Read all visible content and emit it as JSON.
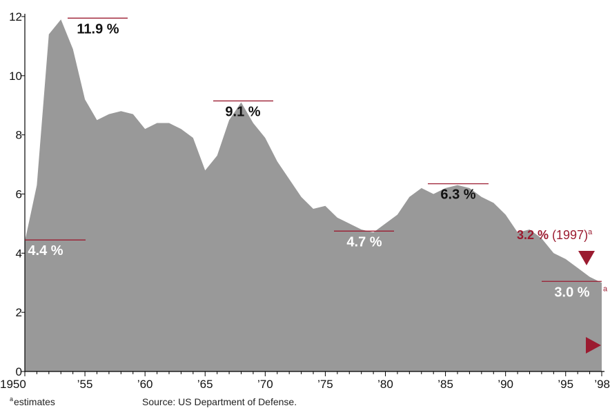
{
  "chart_data": {
    "type": "area",
    "x": [
      1950,
      1951,
      1952,
      1953,
      1954,
      1955,
      1956,
      1957,
      1958,
      1959,
      1960,
      1961,
      1962,
      1963,
      1964,
      1965,
      1966,
      1967,
      1968,
      1969,
      1970,
      1971,
      1972,
      1973,
      1974,
      1975,
      1976,
      1977,
      1978,
      1979,
      1980,
      1981,
      1982,
      1983,
      1984,
      1985,
      1986,
      1987,
      1988,
      1989,
      1990,
      1991,
      1992,
      1993,
      1994,
      1995,
      1996,
      1997,
      1998
    ],
    "values": [
      4.4,
      6.3,
      11.4,
      11.9,
      10.9,
      9.2,
      8.5,
      8.7,
      8.8,
      8.7,
      8.2,
      8.4,
      8.4,
      8.2,
      7.9,
      6.8,
      7.3,
      8.5,
      9.1,
      8.4,
      7.9,
      7.1,
      6.5,
      5.9,
      5.5,
      5.6,
      5.2,
      5.0,
      4.8,
      4.7,
      5.0,
      5.3,
      5.9,
      6.2,
      6.0,
      6.2,
      6.3,
      6.2,
      5.9,
      5.7,
      5.3,
      4.7,
      4.8,
      4.5,
      4.0,
      3.8,
      3.5,
      3.2,
      3.0
    ],
    "ylim": [
      0,
      12
    ],
    "xlim": [
      1950,
      1998
    ],
    "yticks": [
      "0",
      "2",
      "4",
      "6",
      "8",
      "10",
      "12"
    ],
    "ytick_values": [
      0,
      2,
      4,
      6,
      8,
      10,
      12
    ],
    "xticks": [
      "1950",
      "’55",
      "’60",
      "’65",
      "’70",
      "’75",
      "’80",
      "’85",
      "’90",
      "’95",
      "’98"
    ],
    "xtick_values": [
      1950,
      1955,
      1960,
      1965,
      1970,
      1975,
      1980,
      1985,
      1990,
      1995,
      1998
    ],
    "grid": false,
    "colors": {
      "area": "#999999",
      "accent": "#9b1b30",
      "axis": "#000000"
    },
    "annotations": [
      {
        "text": "11.9 %",
        "x": 1953,
        "value": 11.9,
        "style": "dark"
      },
      {
        "text": "9.1 %",
        "x": 1968,
        "value": 9.1,
        "style": "dark"
      },
      {
        "text": "6.3 %",
        "x": 1986,
        "value": 6.3,
        "style": "dark"
      },
      {
        "text": "4.4 %",
        "x": 1950,
        "value": 4.4,
        "style": "light"
      },
      {
        "text": "4.7 %",
        "x": 1979,
        "value": 4.7,
        "style": "light"
      },
      {
        "text": "3.0 %",
        "x": 1998,
        "value": 3.0,
        "style": "light",
        "sup": "a"
      },
      {
        "text": "3.2 %",
        "suffix": "(1997)",
        "x": 1997,
        "value": 3.2,
        "style": "red",
        "sup": "a"
      }
    ]
  },
  "footnote": {
    "sup": "a",
    "text": "estimates"
  },
  "source": "Source: US Department of Defense."
}
